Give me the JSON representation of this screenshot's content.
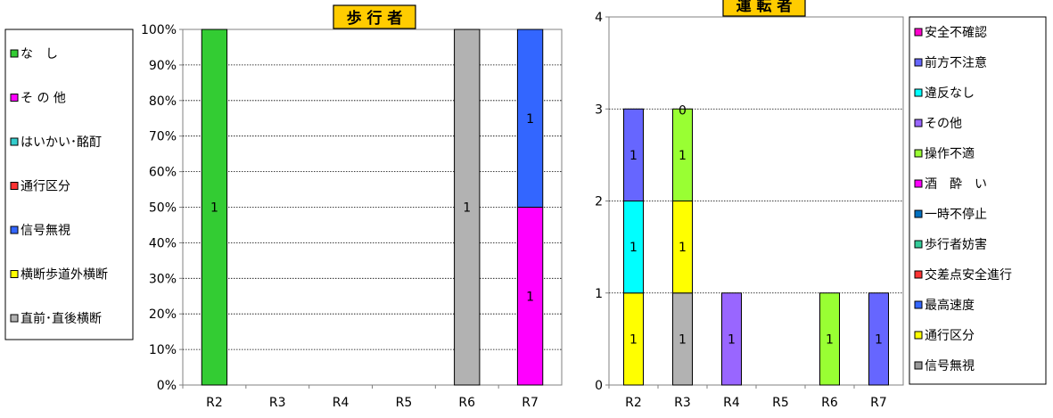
{
  "chart_data": [
    {
      "type": "bar",
      "stacked": true,
      "percent": true,
      "title": "歩 行 者",
      "categories": [
        "R2",
        "R3",
        "R4",
        "R5",
        "R6",
        "R7"
      ],
      "y_ticks": [
        "0%",
        "10%",
        "20%",
        "30%",
        "40%",
        "50%",
        "60%",
        "70%",
        "80%",
        "90%",
        "100%"
      ],
      "ylim": [
        0,
        100
      ],
      "grid": true,
      "legend_position": "left",
      "legend": [
        {
          "name": "な　し",
          "color": "#33cc33"
        },
        {
          "name": "そ の 他",
          "color": "#ff00ff"
        },
        {
          "name": "はいかい･酩酊",
          "color": "#33cccc"
        },
        {
          "name": "通行区分",
          "color": "#ff3333"
        },
        {
          "name": "信号無視",
          "color": "#3366ff"
        },
        {
          "name": "横断歩道外横断",
          "color": "#ffff00"
        },
        {
          "name": "直前･直後横断",
          "color": "#b2b2b2"
        }
      ],
      "series": [
        {
          "name": "な　し",
          "color": "#33cc33",
          "values": [
            1,
            0,
            0,
            0,
            0,
            0
          ]
        },
        {
          "name": "そ の 他",
          "color": "#ff00ff",
          "values": [
            0,
            0,
            0,
            0,
            0,
            1
          ]
        },
        {
          "name": "はいかい･酩酊",
          "color": "#33cccc",
          "values": [
            0,
            0,
            0,
            0,
            0,
            0
          ]
        },
        {
          "name": "通行区分",
          "color": "#ff3333",
          "values": [
            0,
            0,
            0,
            0,
            0,
            0
          ]
        },
        {
          "name": "信号無視",
          "color": "#3366ff",
          "values": [
            0,
            0,
            0,
            0,
            0,
            1
          ]
        },
        {
          "name": "横断歩道外横断",
          "color": "#ffff00",
          "values": [
            0,
            0,
            0,
            0,
            0,
            0
          ]
        },
        {
          "name": "直前･直後横断",
          "color": "#b2b2b2",
          "values": [
            0,
            0,
            0,
            0,
            1,
            0
          ]
        }
      ]
    },
    {
      "type": "bar",
      "stacked": true,
      "title": "運 転 者",
      "categories": [
        "R2",
        "R3",
        "R4",
        "R5",
        "R6",
        "R7"
      ],
      "y_ticks": [
        "0",
        "1",
        "2",
        "3",
        "4"
      ],
      "ylim": [
        0,
        4
      ],
      "grid": true,
      "legend_position": "right",
      "legend": [
        {
          "name": "安全不確認",
          "color": "#ff00cc"
        },
        {
          "name": "前方不注意",
          "color": "#6666ff"
        },
        {
          "name": "違反なし",
          "color": "#00ffff"
        },
        {
          "name": "その他",
          "color": "#9966ff"
        },
        {
          "name": "操作不適",
          "color": "#99ff33"
        },
        {
          "name": "酒　酔　い",
          "color": "#ff00ff"
        },
        {
          "name": "一時不停止",
          "color": "#0070c0"
        },
        {
          "name": "歩行者妨害",
          "color": "#33cc99"
        },
        {
          "name": "交差点安全進行",
          "color": "#ff3333"
        },
        {
          "name": "最高速度",
          "color": "#3366ff"
        },
        {
          "name": "通行区分",
          "color": "#ffff00"
        },
        {
          "name": "信号無視",
          "color": "#999999"
        }
      ],
      "series": [
        {
          "name": "信号無視",
          "color": "#b2b2b2",
          "values": [
            0,
            1,
            0,
            0,
            0,
            0
          ]
        },
        {
          "name": "通行区分",
          "color": "#ffff00",
          "values": [
            1,
            1,
            0,
            0,
            0,
            0
          ]
        },
        {
          "name": "違反なし",
          "color": "#00ffff",
          "values": [
            1,
            0,
            0,
            0,
            0,
            0
          ]
        },
        {
          "name": "前方不注意",
          "color": "#6666ff",
          "values": [
            1,
            0,
            0,
            0,
            0,
            1
          ]
        },
        {
          "name": "その他",
          "color": "#9966ff",
          "values": [
            0,
            0,
            1,
            0,
            0,
            0
          ]
        },
        {
          "name": "操作不適",
          "color": "#99ff33",
          "values": [
            0,
            1,
            0,
            0,
            1,
            0
          ]
        },
        {
          "name": "安全不確認",
          "color": "#ff00cc",
          "values": [
            0,
            0,
            0,
            0,
            0,
            0
          ]
        }
      ],
      "annotations": [
        {
          "category": "R3",
          "text": "0",
          "at_value": 3
        }
      ]
    }
  ]
}
